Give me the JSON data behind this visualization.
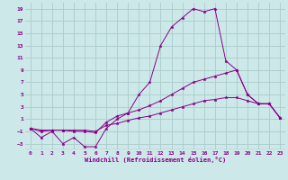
{
  "xlabel": "Windchill (Refroidissement éolien,°C)",
  "background_color": "#cce8e8",
  "grid_color": "#aacccc",
  "line_color": "#880088",
  "xlim": [
    -0.5,
    23.5
  ],
  "ylim": [
    -4,
    20
  ],
  "xticks": [
    0,
    1,
    2,
    3,
    4,
    5,
    6,
    7,
    8,
    9,
    10,
    11,
    12,
    13,
    14,
    15,
    16,
    17,
    18,
    19,
    20,
    21,
    22,
    23
  ],
  "yticks": [
    -3,
    -1,
    1,
    3,
    5,
    7,
    9,
    11,
    13,
    15,
    17,
    19
  ],
  "series": [
    {
      "x": [
        0,
        1,
        2,
        3,
        4,
        5,
        6,
        7,
        8,
        9,
        10,
        11,
        12,
        13,
        14,
        15,
        16,
        17,
        18,
        19,
        20,
        21,
        22,
        23
      ],
      "y": [
        -0.5,
        -2,
        -1,
        -3,
        -2,
        -3.5,
        -3.5,
        -0.5,
        1,
        2,
        5,
        7,
        13,
        16,
        17.5,
        19,
        18.5,
        19,
        10.5,
        9,
        5,
        3.5,
        3.5,
        1.2
      ]
    },
    {
      "x": [
        0,
        1,
        2,
        3,
        4,
        5,
        6,
        7,
        8,
        9,
        10,
        11,
        12,
        13,
        14,
        15,
        16,
        17,
        18,
        19,
        20,
        21,
        22,
        23
      ],
      "y": [
        -0.5,
        -1,
        -0.8,
        -0.8,
        -1,
        -1,
        -1.2,
        0.5,
        1.5,
        2,
        2.5,
        3.2,
        4,
        5,
        6,
        7,
        7.5,
        8,
        8.5,
        9,
        5,
        3.5,
        3.5,
        1.2
      ]
    },
    {
      "x": [
        0,
        1,
        2,
        3,
        4,
        5,
        6,
        7,
        8,
        9,
        10,
        11,
        12,
        13,
        14,
        15,
        16,
        17,
        18,
        19,
        20,
        21,
        22,
        23
      ],
      "y": [
        -0.5,
        -0.8,
        -0.8,
        -0.8,
        -0.8,
        -0.8,
        -1,
        0,
        0.3,
        0.8,
        1.2,
        1.5,
        2,
        2.5,
        3,
        3.5,
        4,
        4.2,
        4.5,
        4.5,
        4,
        3.5,
        3.5,
        1.2
      ]
    }
  ]
}
